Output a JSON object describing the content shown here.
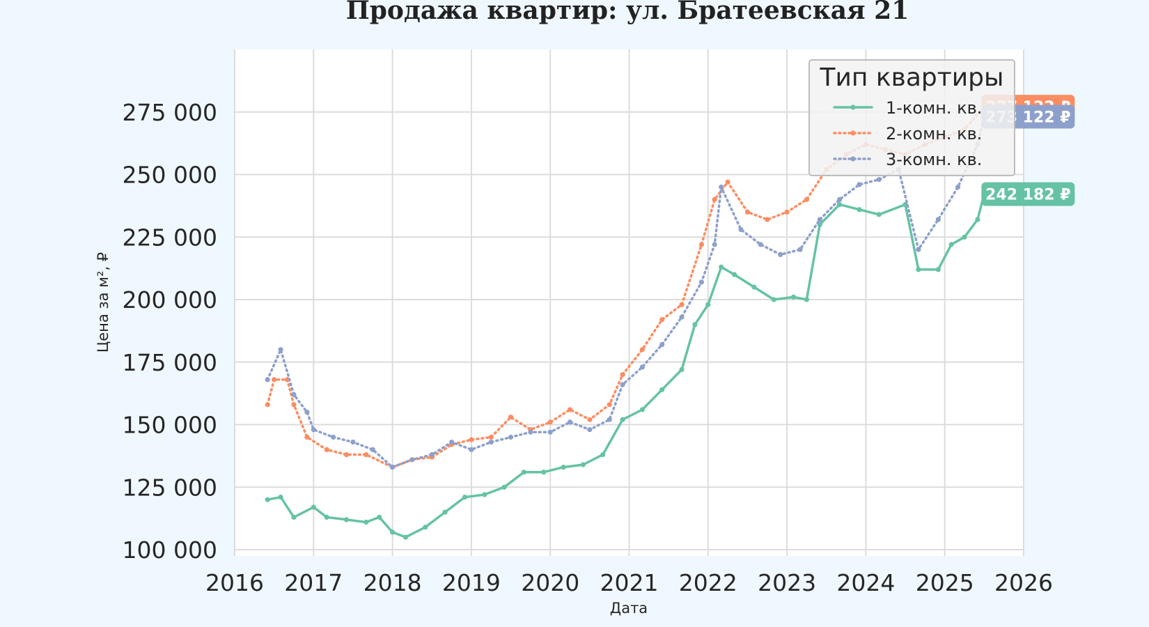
{
  "chart_data": {
    "type": "line",
    "title": "Продажа квартир: ул. Братеевская 21",
    "xlabel": "Дата",
    "ylabel": "Цена за м², ₽",
    "xlim": [
      2016,
      2026
    ],
    "ylim": [
      97500,
      300000
    ],
    "xticks": [
      "2016",
      "2017",
      "2018",
      "2019",
      "2020",
      "2021",
      "2022",
      "2023",
      "2024",
      "2025",
      "2026"
    ],
    "yticks": [
      "100 000",
      "125 000",
      "150 000",
      "175 000",
      "200 000",
      "225 000",
      "250 000",
      "275 000"
    ],
    "grid": true,
    "legend": {
      "title": "Тип квартиры",
      "placement": "top-right",
      "entries": [
        "1-комн. кв.",
        "2-комн. кв.",
        "3-комн. кв."
      ]
    },
    "series": [
      {
        "name": "1-комн. кв.",
        "color": "#66c2a5",
        "style": "solid",
        "last_label": "242 182 ₽",
        "points": [
          [
            "2016-06",
            120000
          ],
          [
            "2016-08",
            121000
          ],
          [
            "2016-10",
            113000
          ],
          [
            "2017-01",
            117000
          ],
          [
            "2017-03",
            113000
          ],
          [
            "2017-06",
            112000
          ],
          [
            "2017-09",
            111000
          ],
          [
            "2017-11",
            113000
          ],
          [
            "2018-01",
            107000
          ],
          [
            "2018-03",
            105000
          ],
          [
            "2018-06",
            109000
          ],
          [
            "2018-09",
            115000
          ],
          [
            "2018-12",
            121000
          ],
          [
            "2019-03",
            122000
          ],
          [
            "2019-06",
            125000
          ],
          [
            "2019-09",
            131000
          ],
          [
            "2019-12",
            131000
          ],
          [
            "2020-03",
            133000
          ],
          [
            "2020-06",
            134000
          ],
          [
            "2020-09",
            138000
          ],
          [
            "2020-12",
            152000
          ],
          [
            "2021-03",
            156000
          ],
          [
            "2021-06",
            164000
          ],
          [
            "2021-09",
            172000
          ],
          [
            "2021-11",
            190000
          ],
          [
            "2022-01",
            198000
          ],
          [
            "2022-03",
            213000
          ],
          [
            "2022-05",
            210000
          ],
          [
            "2022-08",
            205000
          ],
          [
            "2022-11",
            200000
          ],
          [
            "2023-02",
            201000
          ],
          [
            "2023-04",
            200000
          ],
          [
            "2023-06",
            230000
          ],
          [
            "2023-09",
            238000
          ],
          [
            "2023-12",
            236000
          ],
          [
            "2024-03",
            234000
          ],
          [
            "2024-07",
            238000
          ],
          [
            "2024-09",
            212000
          ],
          [
            "2024-12",
            212000
          ],
          [
            "2025-02",
            222000
          ],
          [
            "2025-04",
            225000
          ],
          [
            "2025-06",
            232000
          ],
          [
            "2025-07",
            242182
          ]
        ]
      },
      {
        "name": "2-комн. кв.",
        "color": "#fc8d62",
        "style": "dotted",
        "last_label": "277 122 ₽",
        "points": [
          [
            "2016-06",
            158000
          ],
          [
            "2016-07",
            168000
          ],
          [
            "2016-09",
            168000
          ],
          [
            "2016-10",
            158000
          ],
          [
            "2016-12",
            145000
          ],
          [
            "2017-03",
            140000
          ],
          [
            "2017-06",
            138000
          ],
          [
            "2017-09",
            138000
          ],
          [
            "2018-01",
            133000
          ],
          [
            "2018-04",
            136000
          ],
          [
            "2018-07",
            137000
          ],
          [
            "2018-10",
            142000
          ],
          [
            "2019-01",
            144000
          ],
          [
            "2019-04",
            145000
          ],
          [
            "2019-07",
            153000
          ],
          [
            "2019-10",
            148000
          ],
          [
            "2020-01",
            151000
          ],
          [
            "2020-04",
            156000
          ],
          [
            "2020-07",
            152000
          ],
          [
            "2020-10",
            158000
          ],
          [
            "2020-12",
            170000
          ],
          [
            "2021-03",
            180000
          ],
          [
            "2021-06",
            192000
          ],
          [
            "2021-09",
            198000
          ],
          [
            "2021-12",
            222000
          ],
          [
            "2022-02",
            240000
          ],
          [
            "2022-04",
            247000
          ],
          [
            "2022-07",
            235000
          ],
          [
            "2022-10",
            232000
          ],
          [
            "2023-01",
            235000
          ],
          [
            "2023-04",
            240000
          ],
          [
            "2023-07",
            252000
          ],
          [
            "2023-10",
            258000
          ],
          [
            "2024-01",
            262000
          ],
          [
            "2024-04",
            260000
          ],
          [
            "2024-07",
            258000
          ],
          [
            "2024-10",
            262000
          ],
          [
            "2025-01",
            265000
          ],
          [
            "2025-04",
            268000
          ],
          [
            "2025-07",
            277122
          ]
        ]
      },
      {
        "name": "3-комн. кв.",
        "color": "#8da0cb",
        "style": "dotted",
        "last_label": "273 122 ₽",
        "points": [
          [
            "2016-06",
            168000
          ],
          [
            "2016-08",
            180000
          ],
          [
            "2016-10",
            162000
          ],
          [
            "2016-12",
            155000
          ],
          [
            "2017-01",
            148000
          ],
          [
            "2017-04",
            145000
          ],
          [
            "2017-07",
            143000
          ],
          [
            "2017-10",
            140000
          ],
          [
            "2018-01",
            133000
          ],
          [
            "2018-04",
            136000
          ],
          [
            "2018-07",
            138000
          ],
          [
            "2018-10",
            143000
          ],
          [
            "2019-01",
            140000
          ],
          [
            "2019-04",
            143000
          ],
          [
            "2019-07",
            145000
          ],
          [
            "2019-10",
            147000
          ],
          [
            "2020-01",
            147000
          ],
          [
            "2020-04",
            151000
          ],
          [
            "2020-07",
            148000
          ],
          [
            "2020-10",
            152000
          ],
          [
            "2020-12",
            166000
          ],
          [
            "2021-03",
            173000
          ],
          [
            "2021-06",
            182000
          ],
          [
            "2021-09",
            193000
          ],
          [
            "2021-12",
            207000
          ],
          [
            "2022-02",
            222000
          ],
          [
            "2022-03",
            245000
          ],
          [
            "2022-06",
            228000
          ],
          [
            "2022-09",
            222000
          ],
          [
            "2022-12",
            218000
          ],
          [
            "2023-03",
            220000
          ],
          [
            "2023-06",
            232000
          ],
          [
            "2023-09",
            240000
          ],
          [
            "2023-12",
            246000
          ],
          [
            "2024-03",
            248000
          ],
          [
            "2024-06",
            252000
          ],
          [
            "2024-09",
            220000
          ],
          [
            "2024-12",
            232000
          ],
          [
            "2025-03",
            245000
          ],
          [
            "2025-06",
            262000
          ],
          [
            "2025-07",
            273122
          ]
        ]
      }
    ]
  }
}
